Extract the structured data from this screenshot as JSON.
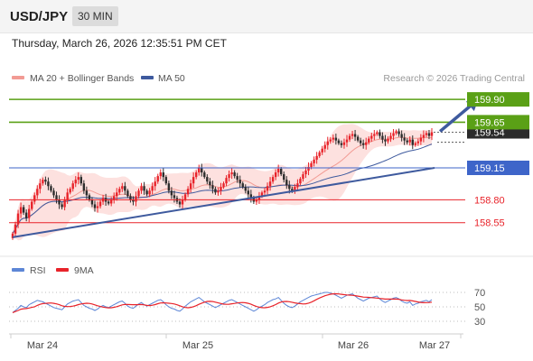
{
  "header": {
    "symbol": "USD/JPY",
    "interval": "30 MIN",
    "timestamp": "Thursday, March 26, 2026 12:35:51 PM CET"
  },
  "colors": {
    "bull": "#e8232a",
    "bear": "#2d2d2d",
    "band_fill": "#fde1df",
    "ma20": "#f29b94",
    "ma50": "#3e5a9e",
    "resistance": "#5aa016",
    "support": "#e8232a",
    "pivot": "#3e65c9",
    "rsi": "#5d86d6",
    "ma9": "#e8232a"
  },
  "chart_data": [
    {
      "type": "candlestick",
      "legend": [
        {
          "name": "MA 20 + Bollinger Bands",
          "color": "#f29b94"
        },
        {
          "name": "MA 50",
          "color": "#3e5a9e"
        }
      ],
      "legend_position": "top-left",
      "watermark": "Research © 2026 Trading Central",
      "x_ticks": [
        "Mar 24",
        "Mar 25",
        "Mar 26",
        "Mar 27"
      ],
      "y_range": [
        158.3,
        160.0
      ],
      "last_price": "159.54",
      "levels": [
        {
          "label": "159.90",
          "value": 159.9,
          "kind": "resistance"
        },
        {
          "label": "159.65",
          "value": 159.65,
          "kind": "resistance"
        },
        {
          "label": "159.15",
          "value": 159.15,
          "kind": "pivot"
        },
        {
          "label": "158.80",
          "value": 158.8,
          "kind": "support"
        },
        {
          "label": "158.55",
          "value": 158.55,
          "kind": "support"
        }
      ],
      "trendline_from": [
        0,
        158.39
      ],
      "trendline_to": [
        154,
        159.15
      ],
      "arrow_from": [
        156,
        159.55
      ],
      "arrow_to": [
        170,
        159.9
      ],
      "closes": [
        158.43,
        158.53,
        158.65,
        158.72,
        158.66,
        158.6,
        158.7,
        158.78,
        158.85,
        158.92,
        158.98,
        159.02,
        159.0,
        158.95,
        158.9,
        158.85,
        158.8,
        158.75,
        158.72,
        158.8,
        158.88,
        158.92,
        158.98,
        159.02,
        159.05,
        158.98,
        158.9,
        158.85,
        158.8,
        158.75,
        158.71,
        158.73,
        158.78,
        158.82,
        158.78,
        158.76,
        158.8,
        158.84,
        158.88,
        158.92,
        158.95,
        158.9,
        158.84,
        158.8,
        158.78,
        158.84,
        158.9,
        158.95,
        158.9,
        158.86,
        158.9,
        158.95,
        159.0,
        159.06,
        159.1,
        159.05,
        158.98,
        158.9,
        158.85,
        158.82,
        158.78,
        158.75,
        158.8,
        158.86,
        158.92,
        158.98,
        159.05,
        159.1,
        159.15,
        159.1,
        159.05,
        159.0,
        158.96,
        158.92,
        158.88,
        158.9,
        158.94,
        158.98,
        159.04,
        159.08,
        159.1,
        159.06,
        159.02,
        158.98,
        158.94,
        158.9,
        158.86,
        158.82,
        158.78,
        158.8,
        158.84,
        158.88,
        158.9,
        158.95,
        159.0,
        159.05,
        159.1,
        159.14,
        159.08,
        159.02,
        158.96,
        158.92,
        158.9,
        158.94,
        158.98,
        159.03,
        159.08,
        159.12,
        159.16,
        159.2,
        159.24,
        159.28,
        159.32,
        159.36,
        159.4,
        159.44,
        159.46,
        159.48,
        159.45,
        159.42,
        159.4,
        159.43,
        159.46,
        159.5,
        159.52,
        159.49,
        159.45,
        159.42,
        159.4,
        159.43,
        159.47,
        159.5,
        159.52,
        159.54,
        159.5,
        159.46,
        159.44,
        159.47,
        159.5,
        159.53,
        159.55,
        159.52,
        159.48,
        159.45,
        159.43,
        159.46,
        159.4,
        159.42,
        159.44,
        159.48,
        159.51,
        159.53,
        159.5,
        159.54
      ]
    },
    {
      "type": "line",
      "legend": [
        {
          "name": "RSI",
          "color": "#5d86d6"
        },
        {
          "name": "9MA",
          "color": "#e8232a"
        }
      ],
      "y_ticks": [
        "70",
        "50",
        "30"
      ],
      "y_range": [
        20,
        80
      ],
      "rsi": [
        42,
        45,
        48,
        52,
        50,
        49,
        53,
        55,
        57,
        59,
        58,
        57,
        55,
        53,
        51,
        49,
        48,
        47,
        46,
        50,
        54,
        56,
        58,
        59,
        60,
        56,
        52,
        50,
        48,
        47,
        45,
        47,
        50,
        52,
        50,
        49,
        51,
        53,
        55,
        57,
        58,
        55,
        51,
        49,
        48,
        51,
        54,
        56,
        53,
        51,
        53,
        55,
        57,
        59,
        60,
        57,
        53,
        50,
        48,
        47,
        45,
        44,
        47,
        51,
        54,
        57,
        59,
        61,
        63,
        60,
        57,
        55,
        53,
        51,
        49,
        51,
        53,
        55,
        57,
        59,
        60,
        58,
        56,
        54,
        52,
        50,
        48,
        46,
        44,
        46,
        49,
        51,
        53,
        56,
        58,
        60,
        61,
        63,
        59,
        55,
        52,
        50,
        49,
        51,
        54,
        57,
        59,
        61,
        63,
        65,
        66,
        67,
        68,
        69,
        70,
        70,
        69,
        68,
        66,
        64,
        62,
        64,
        66,
        67,
        68,
        65,
        62,
        60,
        58,
        60,
        62,
        63,
        64,
        65,
        61,
        58,
        56,
        58,
        60,
        62,
        63,
        61,
        58,
        56,
        55,
        57,
        52,
        54,
        55,
        57,
        58,
        59,
        57,
        60
      ]
    }
  ]
}
